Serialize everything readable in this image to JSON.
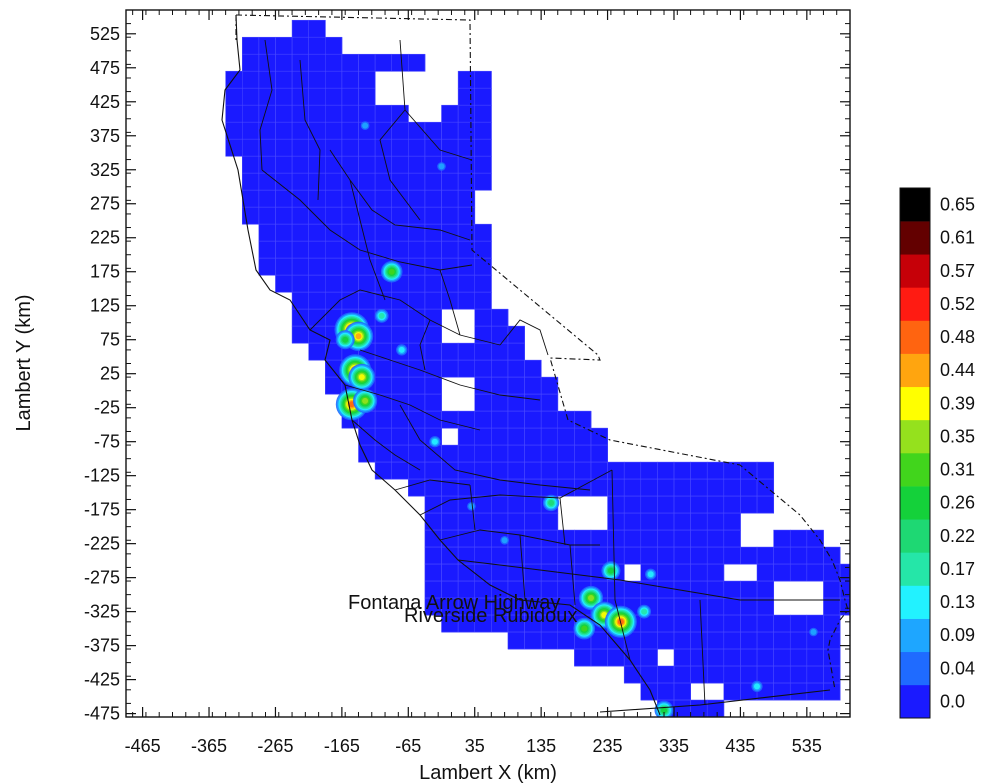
{
  "chart_data": {
    "type": "heatmap",
    "xlabel": "Lambert X (km)",
    "ylabel": "Lambert Y (km)",
    "x_ticks": [
      -465,
      -365,
      -265,
      -165,
      -65,
      35,
      135,
      235,
      335,
      435,
      535
    ],
    "y_ticks": [
      525,
      475,
      425,
      375,
      325,
      275,
      225,
      175,
      125,
      75,
      25,
      -25,
      -75,
      -125,
      -175,
      -225,
      -275,
      -325,
      -375,
      -425,
      -475
    ],
    "xlim": [
      -490,
      600
    ],
    "ylim": [
      -480,
      560
    ],
    "grid_cell_km": 25,
    "colorbar": {
      "levels": [
        "0.0",
        "0.04",
        "0.09",
        "0.13",
        "0.17",
        "0.22",
        "0.26",
        "0.31",
        "0.35",
        "0.39",
        "0.44",
        "0.48",
        "0.52",
        "0.57",
        "0.61",
        "0.65"
      ],
      "colors": [
        "#1a1aff",
        "#1f6bff",
        "#1ea6ff",
        "#22f2ff",
        "#25e6a8",
        "#1ed873",
        "#14d13a",
        "#41d51c",
        "#95e11d",
        "#ffff00",
        "#ffa50f",
        "#ff6410",
        "#ff1b12",
        "#c60008",
        "#630000",
        "#000000"
      ]
    },
    "annotations": [
      {
        "text": "Fontana Arrow Highway",
        "x": -160,
        "y": -322
      },
      {
        "text": "Riverside Rubidoux",
        "x": -100,
        "y": -337
      }
    ],
    "background_value": "0.0",
    "hotspots": [
      {
        "x": -150,
        "y": 90,
        "value": 0.52
      },
      {
        "x": -140,
        "y": 80,
        "value": 0.44
      },
      {
        "x": -160,
        "y": 75,
        "value": 0.26
      },
      {
        "x": -145,
        "y": 30,
        "value": 0.48
      },
      {
        "x": -135,
        "y": 20,
        "value": 0.39
      },
      {
        "x": -150,
        "y": -20,
        "value": 0.48
      },
      {
        "x": -130,
        "y": -15,
        "value": 0.35
      },
      {
        "x": -90,
        "y": 175,
        "value": 0.31
      },
      {
        "x": -105,
        "y": 110,
        "value": 0.17
      },
      {
        "x": -75,
        "y": 60,
        "value": 0.13
      },
      {
        "x": -130,
        "y": 390,
        "value": 0.09
      },
      {
        "x": -15,
        "y": 330,
        "value": 0.09
      },
      {
        "x": -25,
        "y": -75,
        "value": 0.13
      },
      {
        "x": 150,
        "y": -165,
        "value": 0.22
      },
      {
        "x": 240,
        "y": -265,
        "value": 0.26
      },
      {
        "x": 210,
        "y": -305,
        "value": 0.35
      },
      {
        "x": 230,
        "y": -330,
        "value": 0.39
      },
      {
        "x": 255,
        "y": -340,
        "value": 0.48
      },
      {
        "x": 200,
        "y": -350,
        "value": 0.31
      },
      {
        "x": 290,
        "y": -325,
        "value": 0.17
      },
      {
        "x": 300,
        "y": -270,
        "value": 0.13
      },
      {
        "x": 320,
        "y": -470,
        "value": 0.26
      },
      {
        "x": 460,
        "y": -435,
        "value": 0.13
      },
      {
        "x": 545,
        "y": -355,
        "value": 0.09
      },
      {
        "x": 30,
        "y": -170,
        "value": 0.09
      },
      {
        "x": 80,
        "y": -220,
        "value": 0.09
      }
    ]
  }
}
